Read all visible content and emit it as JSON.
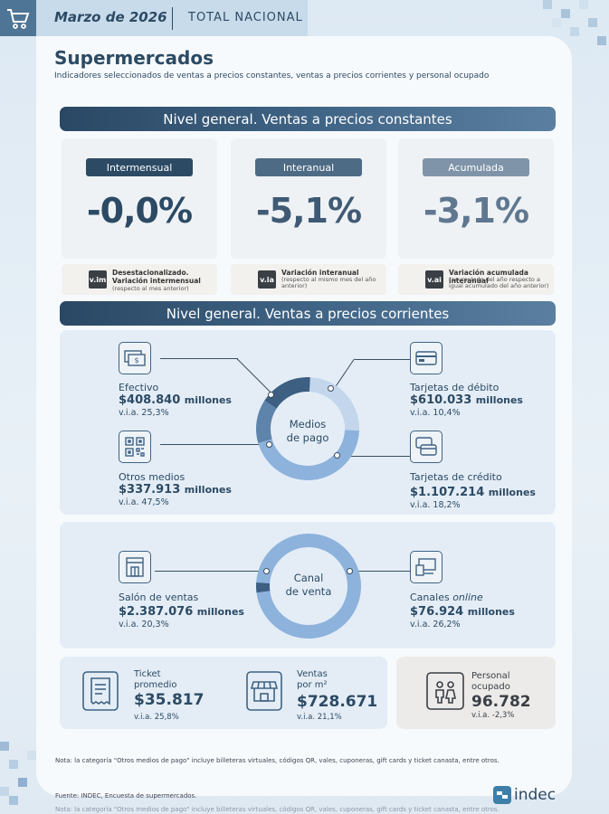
{
  "header": {
    "date": "Marzo de 2026",
    "scope": "TOTAL NACIONAL"
  },
  "page": {
    "title": "Supermercados",
    "subtitle": "Indicadores seleccionados de ventas a precios constantes, ventas a precios corrientes y personal ocupado"
  },
  "constant": {
    "banner": "Nivel general. Ventas a precios constantes",
    "cards": [
      {
        "label": "Intermensual",
        "value": "-0,0%",
        "badge": "v.im",
        "desc_title": "Desestacionalizado. Variación intermensual",
        "desc_sub": "(respecto al mes anterior)",
        "pill_color": "#2c4a64",
        "value_color": "#2c4a64"
      },
      {
        "label": "Interanual",
        "value": "-5,1%",
        "badge": "v.ia",
        "desc_title": "Variación interanual",
        "desc_sub": "(respecto al mismo mes del año anterior)",
        "pill_color": "#4e6b85",
        "value_color": "#3f5a74"
      },
      {
        "label": "Acumulada",
        "value": "-3,1%",
        "badge": "v.ai",
        "desc_title": "Variación acumulada interanual",
        "desc_sub": "(acumulado del año respecto a igual acumulado del año anterior)",
        "pill_color": "#7f94a8",
        "value_color": "#5f7890"
      }
    ]
  },
  "current": {
    "banner": "Nivel general. Ventas a precios corrientes",
    "payment": {
      "center": [
        "Medios",
        "de pago"
      ],
      "items": [
        {
          "label": "Efectivo",
          "amount": "$408.840",
          "unit": "millones",
          "via": "v.i.a. 25,3%",
          "icon": "banknote-icon"
        },
        {
          "label": "Otros medios",
          "amount": "$337.913",
          "unit": "millones",
          "via": "v.i.a. 47,5%",
          "icon": "qr-code-icon"
        },
        {
          "label": "Tarjetas de débito",
          "amount": "$610.033",
          "unit": "millones",
          "via": "v.i.a. 10,4%",
          "icon": "debit-card-icon"
        },
        {
          "label": "Tarjetas de crédito",
          "amount": "$1.107.214",
          "unit": "millones",
          "via": "v.i.a. 18,2%",
          "icon": "credit-cards-icon"
        }
      ],
      "shares": [
        {
          "name": "Tarjetas de crédito",
          "value": 1107214,
          "color": "#8db2dc"
        },
        {
          "name": "Otros medios",
          "value": 337913,
          "color": "#5f84ab"
        },
        {
          "name": "Efectivo",
          "value": 408840,
          "color": "#3c5f82"
        },
        {
          "name": "Tarjetas de débito",
          "value": 610033,
          "color": "#c3d6ec"
        }
      ]
    },
    "channel": {
      "center": [
        "Canal",
        "de venta"
      ],
      "items": [
        {
          "label": "Salón de ventas",
          "amount": "$2.387.076",
          "unit": "millones",
          "via": "v.i.a. 20,3%",
          "icon": "store-building-icon"
        },
        {
          "label_plain": "Canales ",
          "label_italic": "online",
          "amount": "$76.924",
          "unit": "millones",
          "via": "v.i.a. 26,2%",
          "icon": "computer-screen-icon"
        }
      ],
      "shares": [
        {
          "name": "Salón de ventas",
          "value": 2387076,
          "color": "#8db2dc"
        },
        {
          "name": "Canales online",
          "value": 76924,
          "color": "#3c5f82"
        }
      ]
    }
  },
  "bottom": {
    "ticket": {
      "label1": "Ticket",
      "label2": "promedio",
      "value": "$35.817",
      "via": "v.i.a. 25,8%"
    },
    "sales_m2": {
      "label1": "Ventas",
      "label2": "por m²",
      "value": "$728.671",
      "via": "v.i.a. 21,1%"
    },
    "staff": {
      "label1": "Personal",
      "label2": "ocupado",
      "value": "96.782",
      "via": "v.i.a. -2,3%"
    }
  },
  "footer": {
    "note": "Nota: la categoría \"Otros medios de pago\" incluye billeteras virtuales, códigos QR, vales, cuponeras, gift cards y ticket canasta, entre otros.",
    "source": "Fuente: INDEC, Encuesta de supermercados.",
    "logo": "indec"
  }
}
